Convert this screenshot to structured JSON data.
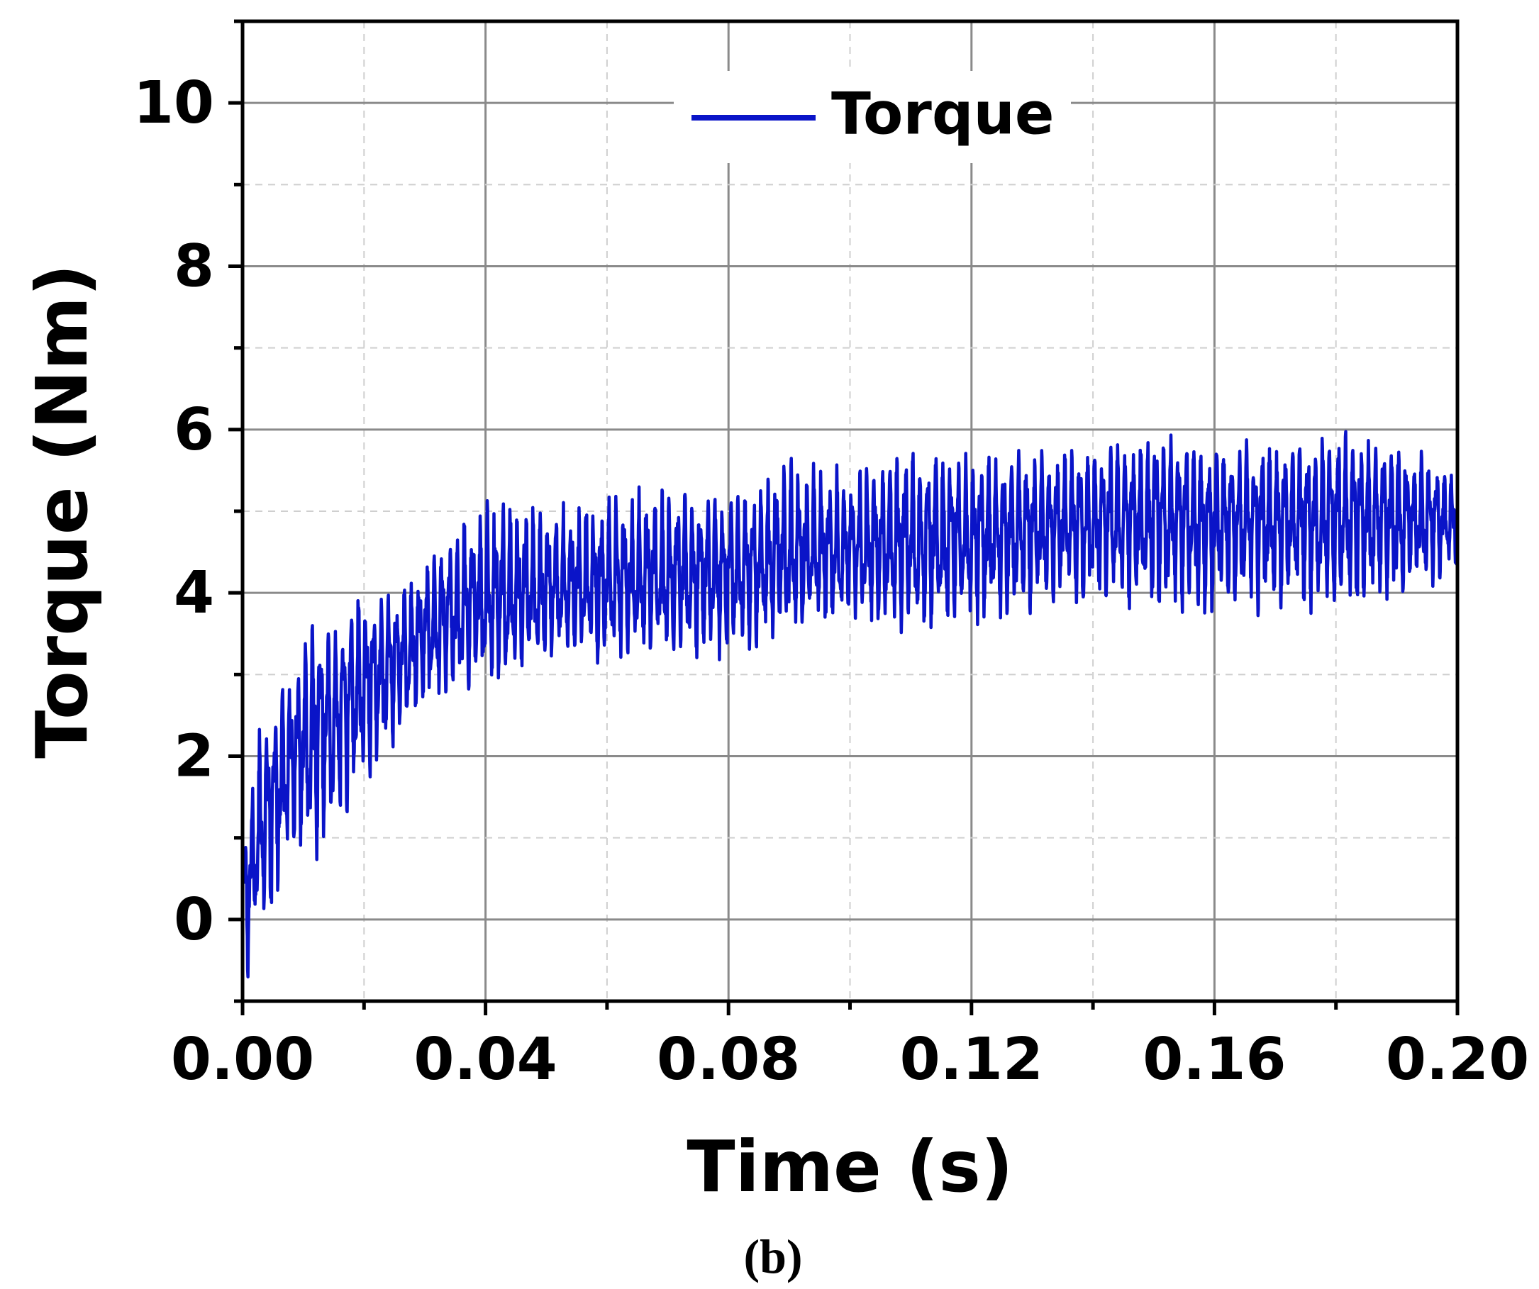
{
  "panel_label": "(b)",
  "chart_data": {
    "type": "line",
    "title": "",
    "xlabel": "Time (s)",
    "ylabel": "Torque (Nm)",
    "xlim": [
      0,
      0.2
    ],
    "ylim": [
      -1,
      11
    ],
    "x_ticks": [
      0.0,
      0.04,
      0.08,
      0.12,
      0.16,
      0.2
    ],
    "x_tick_labels": [
      "0.00",
      "0.04",
      "0.08",
      "0.12",
      "0.16",
      "0.20"
    ],
    "y_ticks": [
      0,
      2,
      4,
      6,
      8,
      10
    ],
    "y_tick_labels": [
      "0",
      "2",
      "4",
      "6",
      "8",
      "10"
    ],
    "grid": true,
    "legend_position": "top-center",
    "series": [
      {
        "name": "Torque",
        "color": "#0a14c8",
        "envelope": {
          "x": [
            0.0,
            0.001,
            0.003,
            0.005,
            0.008,
            0.012,
            0.016,
            0.02,
            0.025,
            0.03,
            0.035,
            0.04,
            0.05,
            0.06,
            0.07,
            0.08,
            0.09,
            0.1,
            0.11,
            0.12,
            0.13,
            0.14,
            0.15,
            0.16,
            0.17,
            0.18,
            0.19,
            0.2
          ],
          "upper": [
            1.2,
            1.3,
            2.7,
            2.5,
            3.2,
            3.8,
            3.6,
            4.2,
            4.0,
            4.5,
            4.9,
            5.4,
            5.2,
            5.3,
            5.4,
            5.2,
            5.8,
            5.6,
            6.0,
            5.7,
            5.8,
            5.9,
            6.1,
            5.9,
            5.9,
            6.1,
            5.9,
            5.5
          ],
          "lower": [
            -0.5,
            -0.9,
            0.1,
            -0.3,
            0.8,
            0.5,
            1.0,
            1.6,
            2.0,
            2.5,
            2.7,
            2.8,
            3.1,
            3.1,
            3.2,
            3.0,
            3.5,
            3.6,
            3.4,
            3.5,
            3.7,
            3.8,
            3.7,
            3.6,
            3.7,
            3.6,
            3.8,
            4.2
          ]
        },
        "mean": {
          "x": [
            0.0,
            0.005,
            0.01,
            0.02,
            0.03,
            0.04,
            0.06,
            0.08,
            0.1,
            0.12,
            0.14,
            0.16,
            0.18,
            0.2
          ],
          "y": [
            0.2,
            1.6,
            2.2,
            2.9,
            3.5,
            3.9,
            4.1,
            4.3,
            4.5,
            4.7,
            4.85,
            4.9,
            4.95,
            4.9
          ]
        }
      }
    ]
  }
}
